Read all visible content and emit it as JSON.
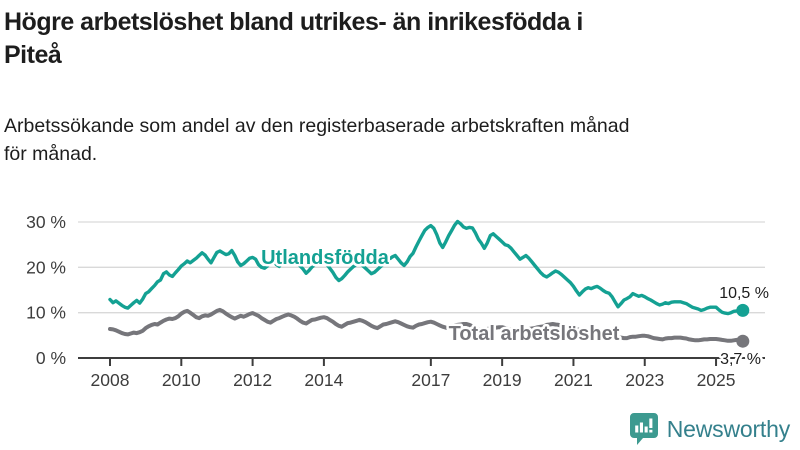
{
  "header": {
    "title_line1": "Högre arbetslöshet bland utrikes- än inrikesfödda i",
    "title_line2": "Piteå",
    "subtitle_line1": "Arbetssökande som andel av den registerbaserade arbetskraften månad",
    "subtitle_line2": "för månad."
  },
  "chart_data": {
    "type": "line",
    "unit": "%",
    "x_start_year": 2008,
    "x_frequency": "monthly",
    "x_end": "2025-10",
    "ylim": [
      0,
      32
    ],
    "grid": true,
    "legend_position": "inline",
    "y_ticks": [
      {
        "value": 0,
        "label": "0 %"
      },
      {
        "value": 10,
        "label": "10 %"
      },
      {
        "value": 20,
        "label": "20 %"
      },
      {
        "value": 30,
        "label": "30 %"
      }
    ],
    "x_ticks": [
      {
        "year": 2008,
        "label": "2008"
      },
      {
        "year": 2010,
        "label": "2010"
      },
      {
        "year": 2012,
        "label": "2012"
      },
      {
        "year": 2014,
        "label": "2014"
      },
      {
        "year": 2017,
        "label": "2017"
      },
      {
        "year": 2019,
        "label": "2019"
      },
      {
        "year": 2021,
        "label": "2021"
      },
      {
        "year": 2023,
        "label": "2023"
      },
      {
        "year": 2025,
        "label": "2025"
      }
    ],
    "series": [
      {
        "name": "total-arbetsloshet",
        "label": "Total arbetslöshet",
        "color": "#76767b",
        "end_label": "3,7 %",
        "end_value": 3.7,
        "values": [
          6.4,
          6.3,
          6.1,
          5.8,
          5.5,
          5.3,
          5.2,
          5.4,
          5.6,
          5.5,
          5.7,
          6.0,
          6.6,
          7.0,
          7.3,
          7.5,
          7.4,
          7.8,
          8.2,
          8.5,
          8.7,
          8.6,
          8.8,
          9.2,
          9.8,
          10.2,
          10.4,
          10.0,
          9.5,
          9.0,
          8.8,
          9.2,
          9.4,
          9.3,
          9.6,
          10.0,
          10.4,
          10.6,
          10.3,
          9.8,
          9.4,
          9.0,
          8.7,
          9.0,
          9.3,
          9.1,
          9.4,
          9.7,
          9.9,
          9.6,
          9.3,
          8.8,
          8.4,
          8.0,
          7.8,
          8.2,
          8.6,
          8.8,
          9.1,
          9.4,
          9.6,
          9.4,
          9.1,
          8.7,
          8.2,
          7.8,
          7.6,
          8.0,
          8.4,
          8.5,
          8.7,
          8.9,
          9.0,
          8.8,
          8.4,
          8.0,
          7.5,
          7.1,
          6.9,
          7.3,
          7.7,
          7.8,
          8.0,
          8.2,
          8.4,
          8.2,
          7.9,
          7.5,
          7.1,
          6.8,
          6.6,
          7.0,
          7.4,
          7.5,
          7.7,
          7.9,
          8.1,
          7.9,
          7.6,
          7.3,
          7.0,
          6.8,
          6.7,
          7.1,
          7.4,
          7.5,
          7.7,
          7.9,
          8.0,
          7.8,
          7.5,
          7.2,
          6.9,
          6.7,
          6.6,
          6.9,
          7.2,
          7.3,
          7.4,
          7.5,
          7.5,
          7.3,
          7.0,
          6.7,
          6.4,
          6.2,
          6.1,
          6.4,
          6.6,
          6.6,
          6.7,
          6.8,
          6.8,
          6.6,
          6.4,
          6.2,
          6.0,
          5.9,
          5.9,
          6.2,
          6.4,
          6.4,
          6.5,
          6.6,
          6.8,
          6.9,
          7.0,
          7.3,
          7.4,
          7.5,
          7.4,
          7.3,
          7.1,
          6.9,
          6.7,
          6.6,
          6.5,
          6.4,
          6.2,
          6.0,
          5.8,
          5.6,
          5.4,
          5.5,
          5.6,
          5.5,
          5.4,
          5.3,
          5.2,
          5.0,
          4.8,
          4.6,
          4.5,
          4.4,
          4.4,
          4.6,
          4.7,
          4.7,
          4.8,
          4.9,
          4.9,
          4.8,
          4.6,
          4.4,
          4.3,
          4.2,
          4.1,
          4.3,
          4.4,
          4.4,
          4.5,
          4.5,
          4.5,
          4.4,
          4.3,
          4.1,
          4.0,
          3.9,
          3.9,
          4.0,
          4.1,
          4.1,
          4.2,
          4.2,
          4.2,
          4.1,
          4.0,
          3.9,
          3.8,
          3.8,
          3.9,
          4.0,
          3.8,
          3.7
        ]
      },
      {
        "name": "utlandsfodda",
        "label": "Utlandsfödda",
        "color": "#14a193",
        "end_label": "10,5 %",
        "end_value": 10.5,
        "values": [
          12.9,
          12.2,
          12.6,
          12.1,
          11.6,
          11.2,
          11.0,
          11.6,
          12.2,
          12.7,
          12.1,
          13.0,
          14.2,
          14.6,
          15.3,
          16.0,
          16.8,
          17.2,
          18.6,
          19.0,
          18.3,
          18.0,
          18.8,
          19.5,
          20.3,
          20.8,
          21.4,
          21.0,
          21.5,
          22.0,
          22.6,
          23.2,
          22.7,
          21.8,
          21.0,
          22.2,
          23.3,
          23.6,
          23.2,
          22.8,
          23.0,
          23.7,
          22.6,
          21.2,
          20.4,
          20.8,
          21.4,
          22.0,
          22.2,
          21.8,
          20.6,
          20.0,
          19.8,
          20.3,
          21.0,
          21.5,
          20.6,
          20.2,
          21.3,
          22.3,
          22.6,
          22.2,
          21.4,
          20.9,
          20.3,
          19.6,
          18.7,
          19.3,
          20.1,
          20.6,
          21.0,
          21.4,
          21.2,
          20.6,
          19.8,
          18.9,
          17.8,
          17.1,
          17.5,
          18.2,
          19.0,
          19.6,
          20.2,
          20.6,
          20.9,
          20.4,
          19.8,
          19.2,
          18.6,
          18.9,
          19.5,
          20.1,
          20.7,
          21.2,
          21.8,
          22.3,
          22.6,
          21.8,
          21.0,
          20.4,
          21.2,
          22.4,
          23.1,
          24.5,
          25.8,
          27.0,
          28.2,
          28.8,
          29.2,
          28.6,
          27.2,
          25.4,
          24.4,
          25.6,
          27.0,
          28.1,
          29.3,
          30.1,
          29.6,
          28.9,
          28.6,
          28.8,
          28.7,
          27.6,
          26.2,
          25.3,
          24.2,
          25.4,
          27.0,
          27.4,
          26.8,
          26.2,
          25.6,
          25.0,
          24.8,
          24.2,
          23.4,
          22.6,
          21.8,
          22.2,
          22.6,
          22.0,
          21.2,
          20.4,
          19.6,
          18.8,
          18.2,
          17.9,
          18.3,
          18.8,
          19.2,
          18.9,
          18.4,
          17.8,
          17.2,
          16.6,
          15.8,
          14.8,
          13.9,
          14.6,
          15.2,
          15.5,
          15.3,
          15.6,
          15.8,
          15.4,
          14.9,
          14.5,
          14.3,
          13.5,
          12.4,
          11.3,
          12.0,
          12.8,
          13.1,
          13.5,
          14.2,
          13.9,
          13.6,
          13.8,
          13.5,
          13.1,
          12.8,
          12.4,
          12.0,
          11.7,
          11.9,
          12.2,
          12.0,
          12.3,
          12.4,
          12.4,
          12.4,
          12.2,
          12.0,
          11.6,
          11.2,
          11.0,
          10.8,
          10.5,
          10.7,
          11.0,
          11.2,
          11.2,
          11.2,
          10.6,
          10.1,
          9.9,
          9.8,
          10.0,
          10.3,
          10.4,
          10.2,
          10.5
        ]
      }
    ],
    "colors": {
      "grid": "#d9d9d9",
      "axis": "#3d3d3d",
      "accent_teal": "#14a193",
      "series_gray": "#76767b"
    }
  },
  "footer": {
    "brand": "Newsworthy",
    "logo_color": "#3d9a90",
    "text_color": "#34808c"
  }
}
